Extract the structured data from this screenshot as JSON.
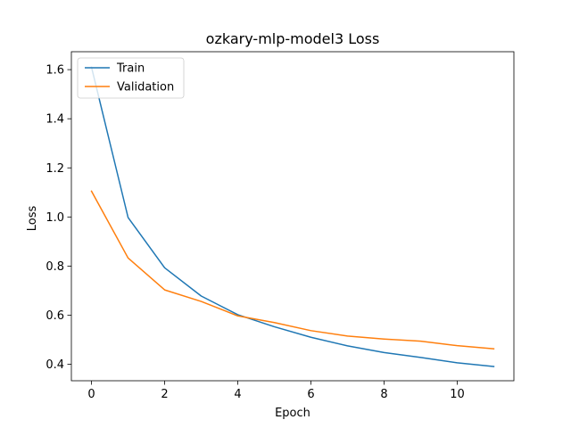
{
  "chart_data": {
    "type": "line",
    "title": "ozkary-mlp-model3 Loss",
    "xlabel": "Epoch",
    "ylabel": "Loss",
    "xlim": [
      -0.55,
      11.55
    ],
    "ylim": [
      0.333,
      1.673
    ],
    "xticks": [
      0,
      2,
      4,
      6,
      8,
      10
    ],
    "xtick_labels": [
      "0",
      "2",
      "4",
      "6",
      "8",
      "10"
    ],
    "yticks": [
      0.4,
      0.6,
      0.8,
      1.0,
      1.2,
      1.4,
      1.6
    ],
    "ytick_labels": [
      "0.4",
      "0.6",
      "0.8",
      "1.0",
      "1.2",
      "1.4",
      "1.6"
    ],
    "grid": false,
    "legend_position": "upper-left",
    "x": [
      0,
      1,
      2,
      3,
      4,
      5,
      6,
      7,
      8,
      9,
      10,
      11
    ],
    "series": [
      {
        "name": "Train",
        "color": "#1f77b4",
        "values": [
          1.61,
          0.998,
          0.793,
          0.678,
          0.602,
          0.553,
          0.51,
          0.475,
          0.448,
          0.428,
          0.406,
          0.391
        ]
      },
      {
        "name": "Validation",
        "color": "#ff7f0e",
        "values": [
          1.105,
          0.833,
          0.703,
          0.656,
          0.597,
          0.57,
          0.537,
          0.515,
          0.503,
          0.494,
          0.476,
          0.463
        ]
      }
    ]
  }
}
